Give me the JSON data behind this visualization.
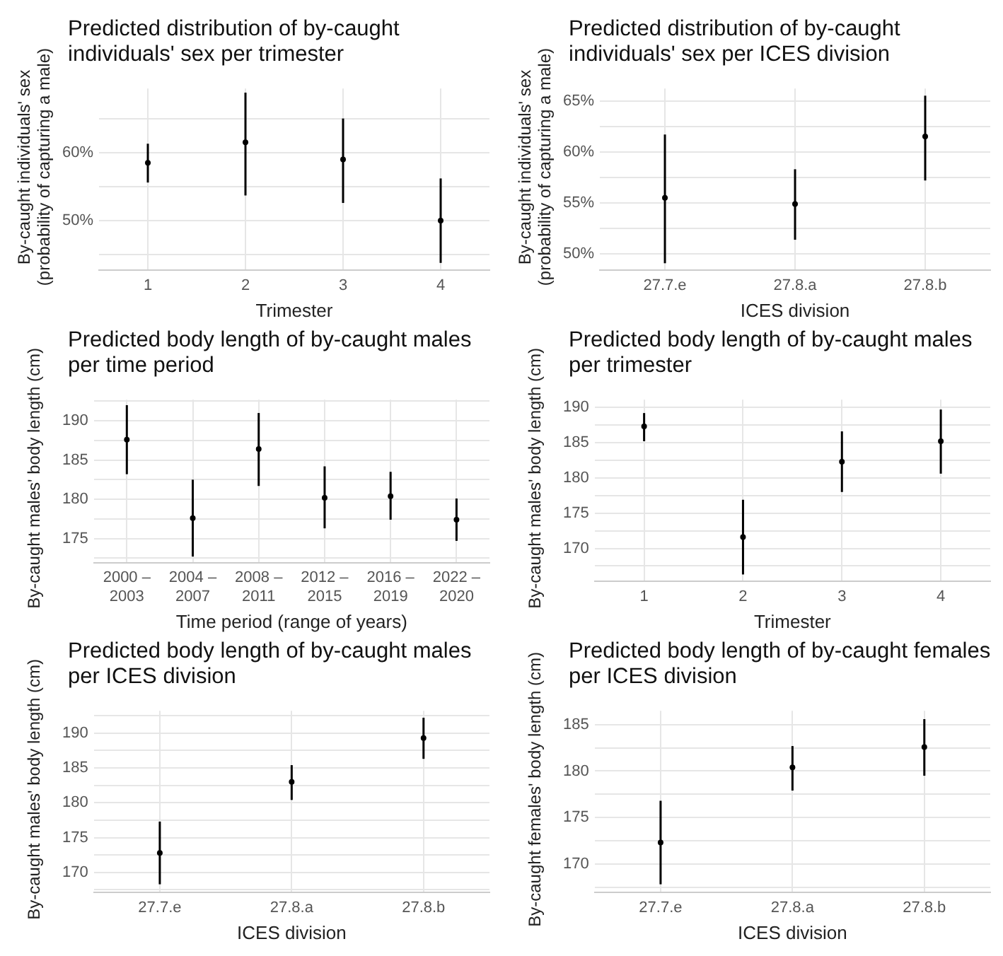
{
  "chart_data": [
    {
      "type": "scatter",
      "title": "Predicted distribution of by-caught individuals' sex per trimester",
      "xlabel": "Trimester",
      "ylabel": "By-caught individuals' sex\n(probability of capturing a male)",
      "categories": [
        "1",
        "2",
        "3",
        "4"
      ],
      "values": [
        58.5,
        61.5,
        59.0,
        50.0
      ],
      "errors": [
        [
          55.6,
          61.3
        ],
        [
          53.7,
          68.8
        ],
        [
          52.6,
          65.0
        ],
        [
          43.8,
          56.2
        ]
      ],
      "color": "#000000",
      "marker": "circle",
      "ylim": [
        42.7,
        69.4
      ],
      "yticks": [
        {
          "value": 45,
          "label": null
        },
        {
          "value": 50,
          "label": "50%"
        },
        {
          "value": 55,
          "label": null
        },
        {
          "value": 60,
          "label": "60%"
        },
        {
          "value": 65,
          "label": null
        }
      ],
      "grid": true,
      "legend": false
    },
    {
      "type": "scatter",
      "title": "Predicted distribution of by-caught individuals' sex per ICES division",
      "xlabel": "ICES division",
      "ylabel": "By-caught individuals' sex\n(probability of capturing a male)",
      "categories": [
        "27.7.e",
        "27.8.a",
        "27.8.b"
      ],
      "values": [
        55.5,
        54.9,
        61.5
      ],
      "errors": [
        [
          49.1,
          61.7
        ],
        [
          51.4,
          58.3
        ],
        [
          57.2,
          65.5
        ]
      ],
      "color": "#000000",
      "marker": "circle",
      "ylim": [
        48.4,
        66.2
      ],
      "yticks": [
        {
          "value": 50,
          "label": "50%"
        },
        {
          "value": 52.5,
          "label": null
        },
        {
          "value": 55,
          "label": "55%"
        },
        {
          "value": 57.5,
          "label": null
        },
        {
          "value": 60,
          "label": "60%"
        },
        {
          "value": 62.5,
          "label": null
        },
        {
          "value": 65,
          "label": "65%"
        }
      ],
      "grid": true,
      "legend": false
    },
    {
      "type": "scatter",
      "title": "Predicted body length of by-caught males per time period",
      "xlabel": "Time period (range of years)",
      "ylabel": "By-caught males' body length (cm)",
      "categories": [
        "2000 – 2003",
        "2004 – 2007",
        "2008 – 2011",
        "2012 – 2015",
        "2016 – 2019",
        "2022 – 2020"
      ],
      "values": [
        187.6,
        177.6,
        186.4,
        180.2,
        180.4,
        177.4
      ],
      "errors": [
        [
          183.2,
          192.0
        ],
        [
          172.7,
          182.5
        ],
        [
          181.7,
          191.0
        ],
        [
          176.3,
          184.2
        ],
        [
          177.4,
          183.5
        ],
        [
          174.7,
          180.1
        ]
      ],
      "color": "#000000",
      "marker": "circle",
      "ylim": [
        171.9,
        192.7
      ],
      "yticks": [
        {
          "value": 172.5,
          "label": null
        },
        175,
        {
          "value": 177.5,
          "label": null
        },
        180,
        {
          "value": 182.5,
          "label": null
        },
        185,
        {
          "value": 187.5,
          "label": null
        },
        190,
        {
          "value": 192.5,
          "label": null
        }
      ],
      "grid": true,
      "legend": false
    },
    {
      "type": "scatter",
      "title": "Predicted body length of by-caught males per trimester",
      "xlabel": "Trimester",
      "ylabel": "By-caught males' body length (cm)",
      "categories": [
        "1",
        "2",
        "3",
        "4"
      ],
      "values": [
        187.3,
        171.6,
        182.3,
        185.2
      ],
      "errors": [
        [
          185.2,
          189.2
        ],
        [
          166.3,
          176.9
        ],
        [
          178.0,
          186.6
        ],
        [
          180.6,
          189.7
        ]
      ],
      "color": "#000000",
      "marker": "circle",
      "ylim": [
        165.3,
        191.1
      ],
      "yticks": [
        {
          "value": 167.5,
          "label": null
        },
        170,
        {
          "value": 172.5,
          "label": null
        },
        175,
        {
          "value": 177.5,
          "label": null
        },
        180,
        {
          "value": 182.5,
          "label": null
        },
        185,
        {
          "value": 187.5,
          "label": null
        },
        190
      ],
      "grid": true,
      "legend": false
    },
    {
      "type": "scatter",
      "title": "Predicted body length of by-caught males per ICES division",
      "xlabel": "ICES division",
      "ylabel": "By-caught males' body length (cm)",
      "categories": [
        "27.7.e",
        "27.8.a",
        "27.8.b"
      ],
      "values": [
        172.8,
        183.0,
        189.3
      ],
      "errors": [
        [
          168.3,
          177.3
        ],
        [
          180.4,
          185.4
        ],
        [
          186.3,
          192.2
        ]
      ],
      "color": "#000000",
      "marker": "circle",
      "ylim": [
        167.1,
        193.2
      ],
      "yticks": [
        {
          "value": 167.5,
          "label": null
        },
        170,
        {
          "value": 172.5,
          "label": null
        },
        175,
        {
          "value": 177.5,
          "label": null
        },
        180,
        {
          "value": 182.5,
          "label": null
        },
        185,
        {
          "value": 187.5,
          "label": null
        },
        190,
        {
          "value": 192.5,
          "label": null
        }
      ],
      "grid": true,
      "legend": false
    },
    {
      "type": "scatter",
      "title": "Predicted body length of by-caught females per ICES division",
      "xlabel": "ICES division",
      "ylabel": "By-caught females' body length (cm)",
      "categories": [
        "27.7.e",
        "27.8.a",
        "27.8.b"
      ],
      "values": [
        172.3,
        180.4,
        182.6
      ],
      "errors": [
        [
          167.8,
          176.8
        ],
        [
          177.9,
          182.7
        ],
        [
          179.5,
          185.6
        ]
      ],
      "color": "#000000",
      "marker": "circle",
      "ylim": [
        166.9,
        186.5
      ],
      "yticks": [
        {
          "value": 167.5,
          "label": null
        },
        170,
        {
          "value": 172.5,
          "label": null
        },
        175,
        {
          "value": 177.5,
          "label": null
        },
        180,
        {
          "value": 182.5,
          "label": null
        },
        185
      ],
      "grid": true,
      "legend": false
    }
  ]
}
